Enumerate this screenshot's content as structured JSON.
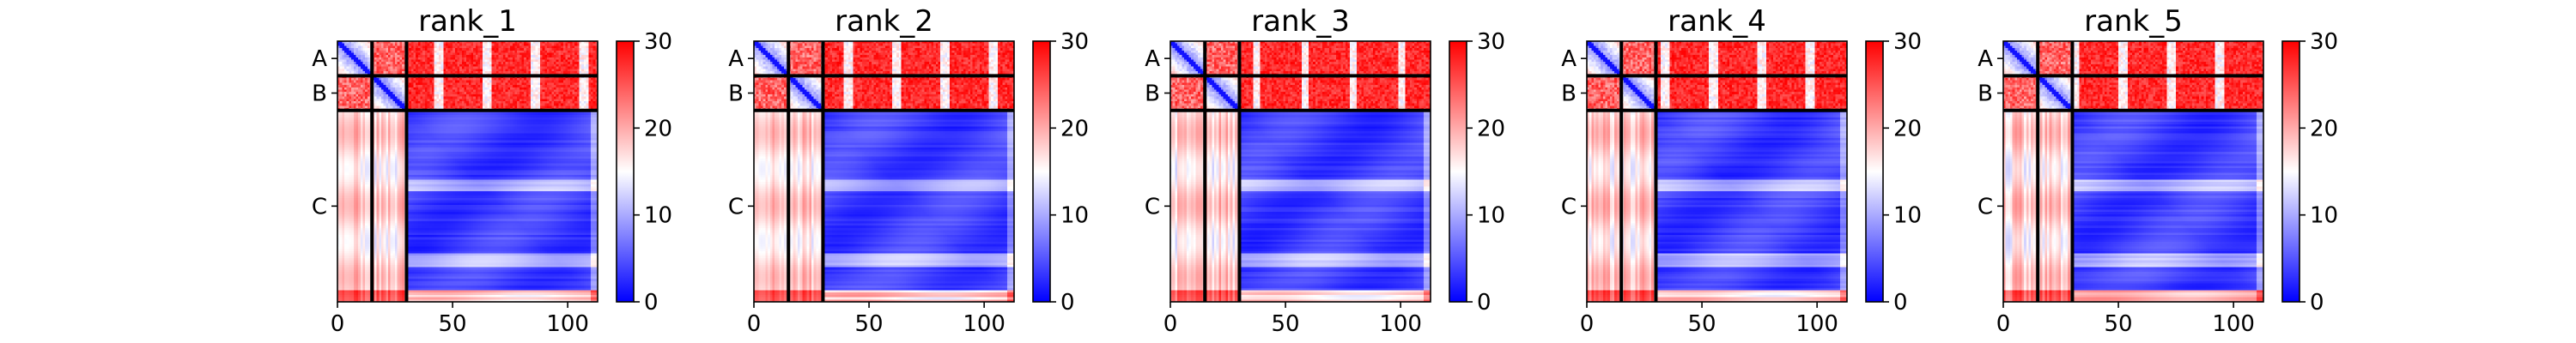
{
  "chart_data": {
    "type": "heatmap",
    "description": "Five PAE heatmaps (predicted aligned error) for a 3-chain complex of 113 residues; diagonal blue, off-chain blocks red; colour scale 0-30",
    "n_residues": 113,
    "chains": [
      {
        "label": "A",
        "start": 0,
        "end": 15
      },
      {
        "label": "B",
        "start": 15,
        "end": 30
      },
      {
        "label": "C",
        "start": 30,
        "end": 113
      }
    ],
    "colormap": {
      "name": "bwr",
      "low": "#0000ff",
      "mid": "#ffffff",
      "high": "#ff0000"
    },
    "colorbar": {
      "min": 0,
      "max": 30,
      "ticks": [
        "0",
        "10",
        "20",
        "30"
      ]
    },
    "x_ticks": [
      "0",
      "50",
      "100"
    ],
    "x_tick_values": [
      0,
      50,
      100
    ],
    "panels": [
      {
        "title": "rank_1",
        "seed": 1
      },
      {
        "title": "rank_2",
        "seed": 2
      },
      {
        "title": "rank_3",
        "seed": 3
      },
      {
        "title": "rank_4",
        "seed": 4
      },
      {
        "title": "rank_5",
        "seed": 5
      }
    ]
  }
}
